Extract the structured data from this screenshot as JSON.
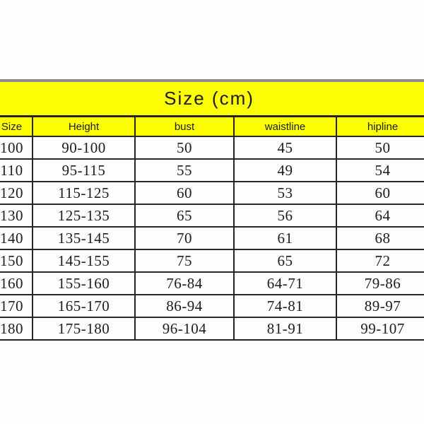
{
  "page": {
    "background_color": "#fefefe"
  },
  "colors": {
    "band_yellow": "#fdfd04",
    "grid_line_dark": "#262626",
    "outer_top_border_gray": "#8a8a8a",
    "text_dark": "#1d1d1d",
    "cell_background": "#fdfdfd"
  },
  "chart_data": {
    "type": "table",
    "title": "Size (cm)",
    "columns": [
      "Size",
      "Height",
      "bust",
      "waistline",
      "hipline"
    ],
    "rows": [
      [
        "100",
        "90-100",
        "50",
        "45",
        "50"
      ],
      [
        "110",
        "95-115",
        "55",
        "49",
        "54"
      ],
      [
        "120",
        "115-125",
        "60",
        "53",
        "60"
      ],
      [
        "130",
        "125-135",
        "65",
        "56",
        "64"
      ],
      [
        "140",
        "135-145",
        "70",
        "61",
        "68"
      ],
      [
        "150",
        "145-155",
        "75",
        "65",
        "72"
      ],
      [
        "160",
        "155-160",
        "76-84",
        "64-71",
        "79-86"
      ],
      [
        "170",
        "165-170",
        "86-94",
        "74-81",
        "89-97"
      ],
      [
        "180",
        "175-180",
        "96-104",
        "81-91",
        "99-107"
      ]
    ],
    "layout_hints": {
      "title_band": "merged yellow band above header row",
      "header_background": "yellow",
      "grid": "on",
      "table_cropped_edges": "left and right sides of table extend past image edges"
    }
  }
}
